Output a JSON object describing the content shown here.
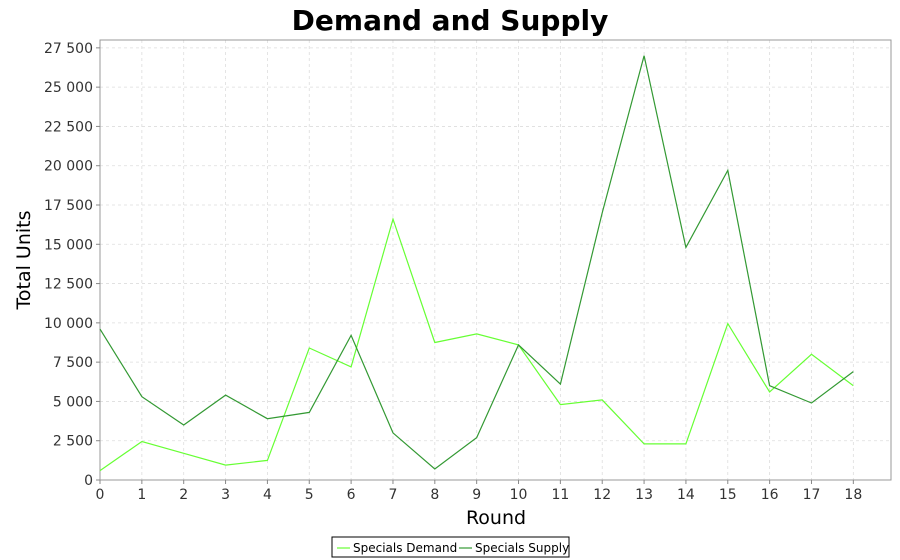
{
  "chart_data": {
    "type": "line",
    "title": "Demand and Supply",
    "xlabel": "Round",
    "ylabel": "Total Units",
    "x": [
      0,
      1,
      2,
      3,
      4,
      5,
      6,
      7,
      8,
      9,
      10,
      11,
      12,
      13,
      14,
      15,
      16,
      17,
      18
    ],
    "xlim": [
      0,
      18.9
    ],
    "ylim": [
      0,
      28000
    ],
    "x_ticks": [
      0,
      1,
      2,
      3,
      4,
      5,
      6,
      7,
      8,
      9,
      10,
      11,
      12,
      13,
      14,
      15,
      16,
      17,
      18
    ],
    "y_ticks": [
      0,
      2500,
      5000,
      7500,
      10000,
      12500,
      15000,
      17500,
      20000,
      22500,
      25000,
      27500
    ],
    "y_tick_labels": [
      "0",
      "2 500",
      "5 000",
      "7 500",
      "10 000",
      "12 500",
      "15 000",
      "17 500",
      "20 000",
      "22 500",
      "25 000",
      "27 500"
    ],
    "grid": true,
    "legend_position": "bottom-center",
    "series": [
      {
        "name": "Specials Demand",
        "color": "#66ff33",
        "values": [
          600,
          2450,
          1700,
          950,
          1250,
          8400,
          7200,
          16600,
          8750,
          9300,
          8600,
          4800,
          5100,
          2300,
          2300,
          9950,
          5600,
          8000,
          6000
        ]
      },
      {
        "name": "Specials Supply",
        "color": "#339933",
        "values": [
          9600,
          5300,
          3500,
          5400,
          3900,
          4300,
          9200,
          3000,
          700,
          2700,
          8600,
          6100,
          17000,
          27000,
          14800,
          19700,
          6000,
          4900,
          6900
        ]
      }
    ]
  }
}
